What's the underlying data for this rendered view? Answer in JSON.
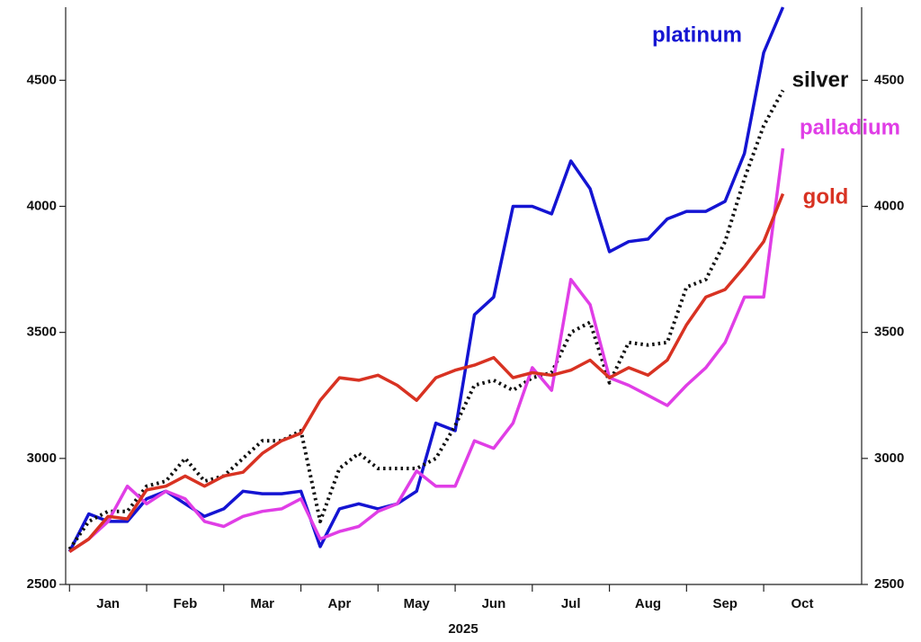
{
  "chart_data": {
    "type": "line",
    "xlabel": "2025",
    "x": [
      1,
      1.25,
      1.5,
      1.75,
      2,
      2.25,
      2.5,
      2.75,
      3,
      3.25,
      3.5,
      3.75,
      4,
      4.25,
      4.5,
      4.75,
      5,
      5.25,
      5.5,
      5.75,
      6,
      6.25,
      6.5,
      6.75,
      7,
      7.25,
      7.5,
      7.75,
      8,
      8.25,
      8.5,
      8.75,
      9,
      9.25,
      9.5,
      9.75,
      10,
      10.25
    ],
    "xlim": [
      0.95,
      11.27
    ],
    "xticks": [
      {
        "value": 1.5,
        "label": "Jan"
      },
      {
        "value": 2.5,
        "label": "Feb"
      },
      {
        "value": 3.5,
        "label": "Mar"
      },
      {
        "value": 4.5,
        "label": "Apr"
      },
      {
        "value": 5.5,
        "label": "May"
      },
      {
        "value": 6.5,
        "label": "Jun"
      },
      {
        "value": 7.5,
        "label": "Jul"
      },
      {
        "value": 8.5,
        "label": "Aug"
      },
      {
        "value": 9.5,
        "label": "Sep"
      },
      {
        "value": 10.5,
        "label": "Oct"
      }
    ],
    "ylim": [
      2500,
      4790
    ],
    "yticks": [
      2500,
      3000,
      3500,
      4000,
      4500
    ],
    "series": [
      {
        "name": "platinum",
        "color": "#1414d2",
        "values": [
          2630,
          2780,
          2750,
          2750,
          2840,
          2870,
          2820,
          2770,
          2800,
          2870,
          2860,
          2860,
          2870,
          2650,
          2800,
          2820,
          2800,
          2820,
          2870,
          3140,
          3110,
          3570,
          3640,
          4000,
          4000,
          3970,
          4180,
          4070,
          3820,
          3860,
          3870,
          3950,
          3980,
          3980,
          4020,
          4210,
          4610,
          4790
        ]
      },
      {
        "name": "silver",
        "color": "#111111",
        "values": [
          2640,
          2750,
          2790,
          2790,
          2890,
          2910,
          3000,
          2910,
          2930,
          3000,
          3070,
          3070,
          3110,
          2750,
          2960,
          3020,
          2960,
          2960,
          2960,
          3000,
          3130,
          3290,
          3310,
          3270,
          3320,
          3340,
          3500,
          3540,
          3300,
          3460,
          3450,
          3460,
          3680,
          3710,
          3860,
          4110,
          4320,
          4460
        ]
      },
      {
        "name": "palladium",
        "color": "#e03ee6",
        "values": [
          2630,
          2680,
          2750,
          2890,
          2820,
          2870,
          2840,
          2750,
          2730,
          2770,
          2790,
          2800,
          2840,
          2680,
          2710,
          2730,
          2790,
          2820,
          2950,
          2890,
          2890,
          3070,
          3040,
          3140,
          3360,
          3270,
          3710,
          3610,
          3320,
          3290,
          3250,
          3210,
          3290,
          3360,
          3460,
          3640,
          3640,
          4230
        ]
      },
      {
        "name": "gold",
        "color": "#d83222",
        "values": [
          2630,
          2680,
          2770,
          2760,
          2875,
          2890,
          2930,
          2890,
          2930,
          2945,
          3020,
          3070,
          3100,
          3230,
          3320,
          3310,
          3330,
          3290,
          3230,
          3320,
          3350,
          3370,
          3400,
          3320,
          3340,
          3330,
          3350,
          3390,
          3320,
          3360,
          3330,
          3390,
          3530,
          3640,
          3670,
          3760,
          3860,
          4050
        ]
      }
    ]
  }
}
